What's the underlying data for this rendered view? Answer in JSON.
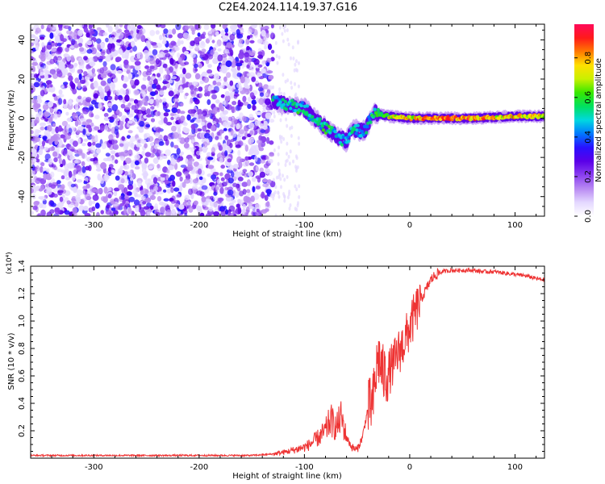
{
  "title": "C2E4.2024.114.19.37.G16",
  "colors": {
    "series": "#ee3333",
    "colormap": [
      "#ffffff",
      "#e4d8ff",
      "#b98af2",
      "#8a3ff0",
      "#5b00e8",
      "#2a10ff",
      "#0077ff",
      "#00d8e0",
      "#00e060",
      "#37e800",
      "#c8f000",
      "#ffe000",
      "#ff7a00",
      "#ff1a1a",
      "#ff0a5a"
    ]
  },
  "chart_data": [
    {
      "type": "heatmap",
      "title": "",
      "xlabel": "Height of straight line (km)",
      "ylabel": "Frequency (Hz)",
      "xlim": [
        -360,
        128
      ],
      "ylim": [
        -50,
        48
      ],
      "x_ticks": [
        -300,
        -200,
        -100,
        0,
        100
      ],
      "y_ticks": [
        -40,
        -20,
        0,
        20,
        40
      ],
      "colorbar": {
        "label": "Normalized spectral amplitude",
        "range": [
          0,
          0.97
        ],
        "ticks": [
          "0.0",
          "0.2",
          "0.4",
          "0.6",
          "0.8"
        ],
        "tick_values": [
          0.0,
          0.2,
          0.4,
          0.6,
          0.8
        ]
      },
      "noise_region_x": [
        -360,
        -130
      ],
      "signal_track": [
        {
          "x": -130,
          "freq": 8,
          "amp": 0.55
        },
        {
          "x": -115,
          "freq": 7,
          "amp": 0.6
        },
        {
          "x": -100,
          "freq": 5,
          "amp": 0.6
        },
        {
          "x": -90,
          "freq": 0,
          "amp": 0.55
        },
        {
          "x": -80,
          "freq": -5,
          "amp": 0.6
        },
        {
          "x": -70,
          "freq": -9,
          "amp": 0.55
        },
        {
          "x": -60,
          "freq": -12,
          "amp": 0.5
        },
        {
          "x": -55,
          "freq": -5,
          "amp": 0.55
        },
        {
          "x": -45,
          "freq": -7,
          "amp": 0.5
        },
        {
          "x": -40,
          "freq": -4,
          "amp": 0.55
        },
        {
          "x": -35,
          "freq": 3,
          "amp": 0.6
        },
        {
          "x": -20,
          "freq": 1,
          "amp": 0.8
        },
        {
          "x": 0,
          "freq": 0,
          "amp": 0.85
        },
        {
          "x": 30,
          "freq": 0,
          "amp": 0.95
        },
        {
          "x": 60,
          "freq": 0,
          "amp": 0.92
        },
        {
          "x": 100,
          "freq": 1,
          "amp": 0.88
        },
        {
          "x": 128,
          "freq": 1,
          "amp": 0.85
        }
      ]
    },
    {
      "type": "line",
      "title": "",
      "xlabel": "Height of straight line (km)",
      "ylabel": "SNR (10 * v/v)",
      "y_multiplier": "(x10⁴)",
      "xlim": [
        -360,
        128
      ],
      "ylim": [
        0,
        1.4
      ],
      "x_ticks": [
        -300,
        -200,
        -100,
        0,
        100
      ],
      "y_ticks": [
        0.2,
        0.4,
        0.6,
        0.8,
        1.0,
        1.2,
        1.4
      ],
      "y_tick_labels": [
        "0.2",
        "0.4",
        "0.6",
        "0.8",
        "1.0",
        "1.2",
        "1.4"
      ],
      "series": [
        {
          "x": [
            -360,
            -300,
            -250,
            -200,
            -150,
            -130,
            -115,
            -105,
            -100,
            -95,
            -90,
            -85,
            -80,
            -75,
            -70,
            -65,
            -60,
            -55,
            -50,
            -45,
            -40,
            -35,
            -30,
            -25,
            -20,
            -15,
            -10,
            -5,
            0,
            5,
            10,
            15,
            20,
            25,
            30,
            40,
            50,
            60,
            70,
            80,
            90,
            100,
            110,
            120,
            128
          ],
          "y": [
            0.02,
            0.02,
            0.02,
            0.02,
            0.02,
            0.03,
            0.05,
            0.07,
            0.08,
            0.1,
            0.13,
            0.16,
            0.2,
            0.28,
            0.22,
            0.3,
            0.15,
            0.08,
            0.06,
            0.15,
            0.35,
            0.4,
            0.75,
            0.6,
            0.62,
            0.7,
            0.78,
            0.85,
            0.95,
            1.05,
            1.15,
            1.22,
            1.3,
            1.34,
            1.36,
            1.37,
            1.37,
            1.37,
            1.36,
            1.36,
            1.35,
            1.34,
            1.33,
            1.31,
            1.3
          ]
        }
      ]
    }
  ]
}
